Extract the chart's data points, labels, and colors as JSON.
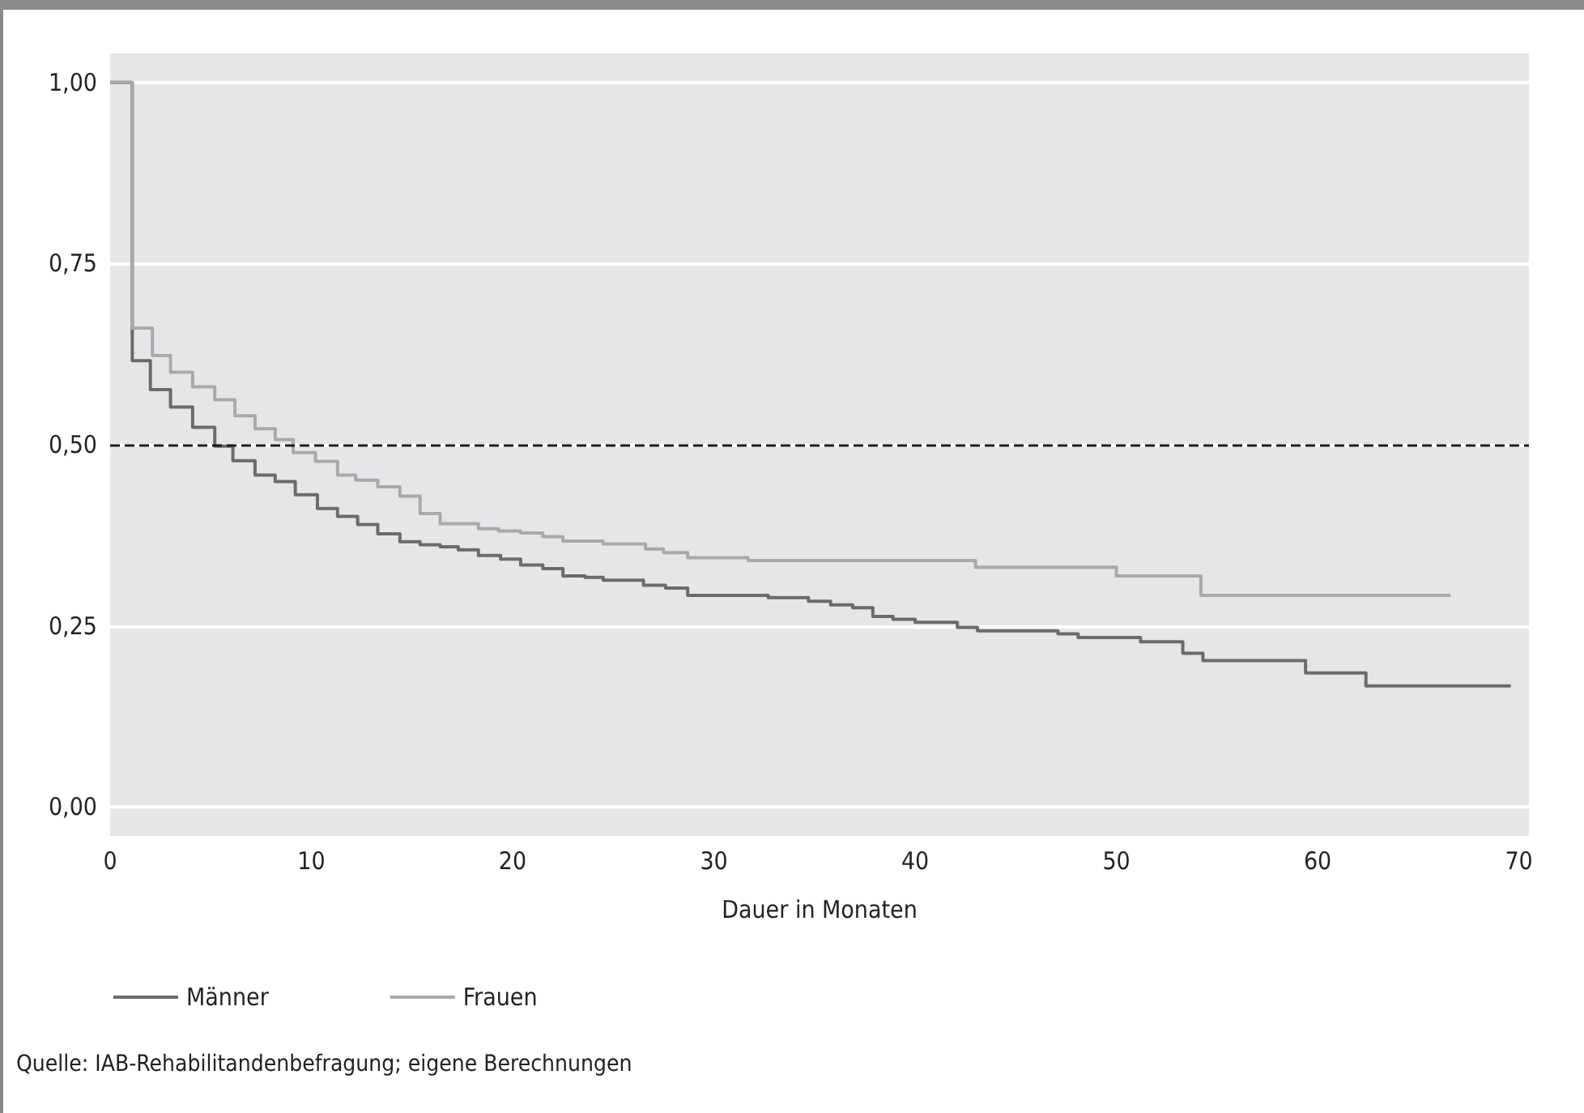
{
  "chart_data": {
    "type": "step",
    "xlabel": "Dauer in Monaten",
    "xlim": [
      0,
      70.5
    ],
    "xticks": [
      0,
      10,
      20,
      30,
      40,
      50,
      60,
      70
    ],
    "ylim": [
      -0.04,
      1.04
    ],
    "yticks": [
      {
        "value": 0,
        "label": "0,00"
      },
      {
        "value": 0.25,
        "label": "0,25"
      },
      {
        "value": 0.5,
        "label": "0,50"
      },
      {
        "value": 0.75,
        "label": "0,75"
      },
      {
        "value": 1,
        "label": "1,00"
      }
    ],
    "grid": "y",
    "legend": "bottom left",
    "marker": "none",
    "ref_lines": [
      {
        "axis": "y",
        "value": 0.5,
        "label": null,
        "color": "#1a1a1a",
        "line_style": "dashed"
      }
    ],
    "series": [
      {
        "name": "Männer",
        "color": "#6b6b6d",
        "x": [
          0,
          1.1,
          2.0,
          3.0,
          4.1,
          5.2,
          6.1,
          7.2,
          8.2,
          9.2,
          10.3,
          11.3,
          12.3,
          13.3,
          14.4,
          15.4,
          16.4,
          17.3,
          18.3,
          19.4,
          20.4,
          21.5,
          22.5,
          23.6,
          24.5,
          26.5,
          27.6,
          28.7,
          32.7,
          34.7,
          35.8,
          36.9,
          37.9,
          38.9,
          40.0,
          42.1,
          43.1,
          47.1,
          48.1,
          51.2,
          53.3,
          54.3,
          59.4,
          62.4,
          69.6
        ],
        "values": [
          1,
          0.616,
          0.576,
          0.552,
          0.524,
          0.498,
          0.478,
          0.458,
          0.449,
          0.431,
          0.412,
          0.401,
          0.39,
          0.377,
          0.366,
          0.362,
          0.359,
          0.355,
          0.347,
          0.342,
          0.334,
          0.329,
          0.319,
          0.317,
          0.313,
          0.306,
          0.302,
          0.292,
          0.289,
          0.284,
          0.279,
          0.275,
          0.263,
          0.259,
          0.255,
          0.248,
          0.243,
          0.239,
          0.234,
          0.228,
          0.212,
          0.202,
          0.185,
          0.167,
          0.167
        ]
      },
      {
        "name": "Frauen",
        "color": "#a9a9ab",
        "x": [
          0,
          1.1,
          2.1,
          3.0,
          4.1,
          5.2,
          6.2,
          7.2,
          8.2,
          9.1,
          10.2,
          11.3,
          12.2,
          13.3,
          14.4,
          15.4,
          16.4,
          18.3,
          19.3,
          20.4,
          21.5,
          22.5,
          24.5,
          26.6,
          27.5,
          28.7,
          31.7,
          43.0,
          50.0,
          54.2,
          66.6
        ],
        "values": [
          1,
          0.661,
          0.623,
          0.6,
          0.58,
          0.562,
          0.54,
          0.522,
          0.507,
          0.489,
          0.477,
          0.458,
          0.451,
          0.442,
          0.429,
          0.405,
          0.391,
          0.384,
          0.381,
          0.378,
          0.373,
          0.367,
          0.363,
          0.356,
          0.351,
          0.344,
          0.34,
          0.331,
          0.319,
          0.292,
          0.292
        ]
      }
    ],
    "annotations": [
      "Quelle: IAB-Rehabilitandenbefragung; eigene Berechnungen"
    ]
  }
}
